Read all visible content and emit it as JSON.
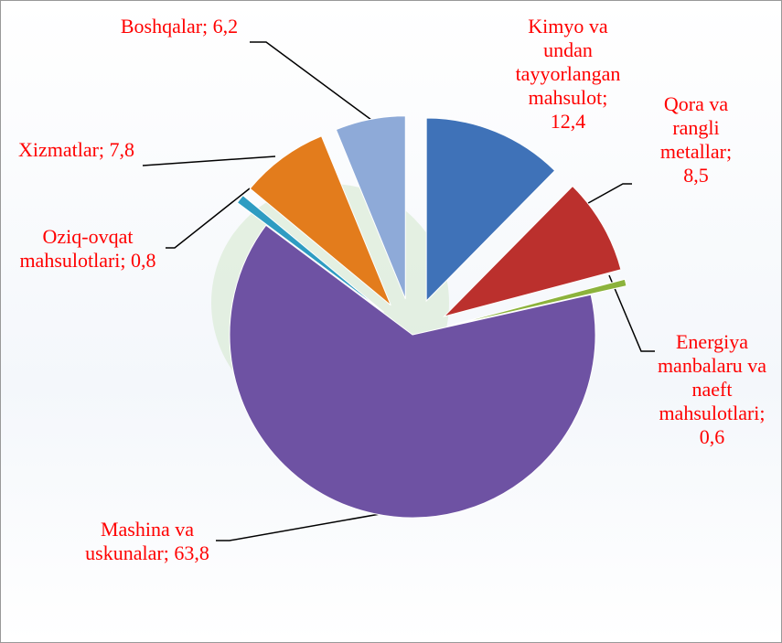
{
  "chart_data": {
    "type": "pie",
    "categories": [
      "Kimyo va undan tayyorlangan mahsulot",
      "Qora va rangli metallar",
      "Energiya manbalaru va naeft mahsulotlari",
      "Mashina va uskunalar",
      "Oziq-ovqat mahsulotlari",
      "Xizmatlar",
      "Boshqalar"
    ],
    "values": [
      12.4,
      8.5,
      0.6,
      63.8,
      0.8,
      7.8,
      6.2
    ],
    "value_labels": [
      "12,4",
      "8,5",
      "0,6",
      "63,8",
      "0,8",
      "7,8",
      "6,2"
    ],
    "label_separator": "; ",
    "colors": [
      "#3f72b8",
      "#bb302d",
      "#8cb33c",
      "#6e52a3",
      "#2e9cc2",
      "#e37c1c",
      "#8eaad8"
    ]
  }
}
